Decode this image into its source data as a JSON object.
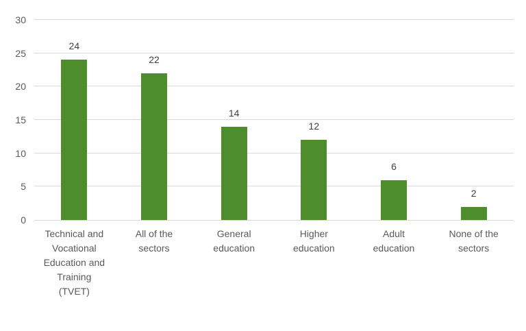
{
  "chart_data": {
    "type": "bar",
    "title": "",
    "xlabel": "",
    "ylabel": "",
    "categories": [
      "Technical and Vocational Education and Training (TVET)",
      "All of the sectors",
      "General education",
      "Higher education",
      "Adult education",
      "None of the sectors"
    ],
    "tick_label_lines": [
      [
        "Technical and",
        "Vocational",
        "Education and",
        "Training",
        "(TVET)"
      ],
      [
        "All of the",
        "sectors"
      ],
      [
        "General",
        "education"
      ],
      [
        "Higher",
        "education"
      ],
      [
        "Adult",
        "education"
      ],
      [
        "None of the",
        "sectors"
      ]
    ],
    "values": [
      24,
      22,
      14,
      12,
      6,
      2
    ],
    "ylim": [
      0,
      30
    ],
    "yticks": [
      0,
      5,
      10,
      15,
      20,
      25,
      30
    ],
    "grid": true,
    "legend": false,
    "colors": {
      "bar": "#4E8D2C",
      "gridline": "#D9D9D9",
      "axis_line": "#D9D9D9",
      "tick_label": "#595959",
      "category_label": "#595959",
      "value_label": "#3F3F3F",
      "background": "#FFFFFF"
    }
  }
}
